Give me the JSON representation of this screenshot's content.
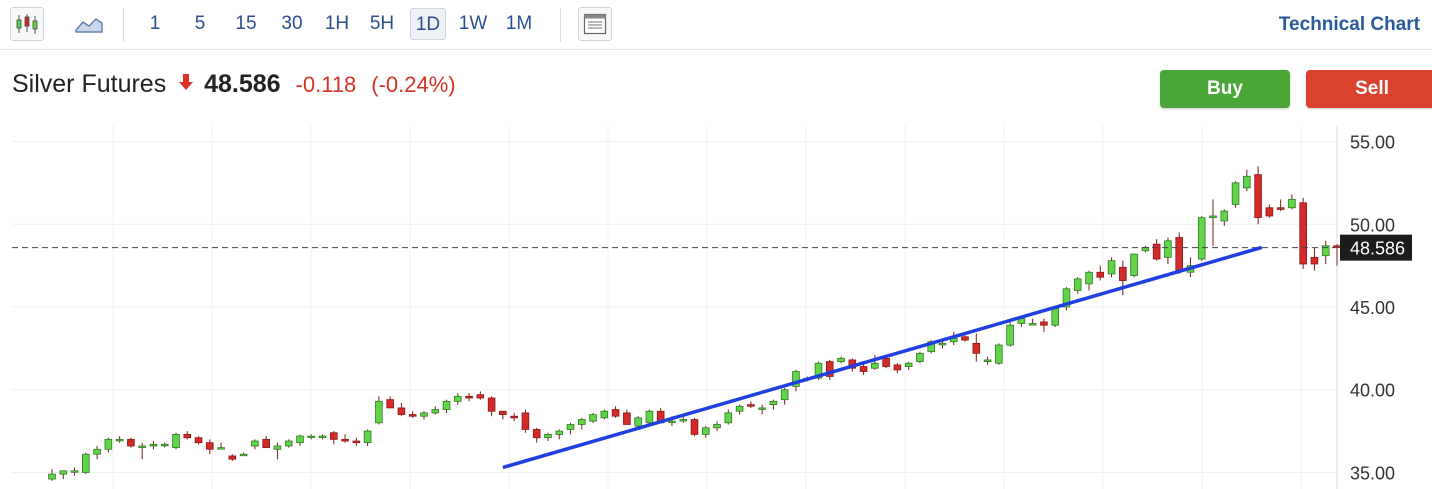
{
  "toolbar": {
    "chart_type_icons": [
      "candlestick-icon",
      "area-chart-icon"
    ],
    "intervals": [
      "1",
      "5",
      "15",
      "30",
      "1H",
      "5H",
      "1D",
      "1W",
      "1M"
    ],
    "active_interval": "1D",
    "layout_icon": "panel-layout-icon",
    "technical_link": "Technical Chart"
  },
  "instrument": {
    "name": "Silver Futures",
    "direction_icon": "arrow-down-icon",
    "price": "48.586",
    "change": "-0.118",
    "change_pct": "(-0.24%)"
  },
  "actions": {
    "buy_label": "Buy",
    "sell_label": "Sell"
  },
  "colors": {
    "up": "#62d44a",
    "down": "#d32a2a",
    "trendline": "#1f3fe0",
    "price_tag": "#1c1c1c",
    "negative_text": "#d7322a"
  },
  "chart_data": {
    "type": "candlestick",
    "ylim": [
      34,
      56
    ],
    "y_ticks": [
      "55.00",
      "50.00",
      "45.00",
      "40.00",
      "35.00"
    ],
    "y_tick_values": [
      55,
      50,
      45,
      40,
      35
    ],
    "last_price": 48.586,
    "last_price_label": "48.586",
    "grid": true,
    "candles": [
      [
        34.6,
        35.2,
        34.5,
        34.9
      ],
      [
        34.9,
        35.1,
        34.6,
        35.1
      ],
      [
        35.1,
        35.3,
        34.8,
        35.1
      ],
      [
        35.0,
        36.2,
        34.9,
        36.1
      ],
      [
        36.1,
        36.6,
        35.8,
        36.4
      ],
      [
        36.4,
        37.1,
        36.2,
        37.0
      ],
      [
        37.0,
        37.2,
        36.8,
        37.0
      ],
      [
        37.0,
        37.1,
        36.5,
        36.6
      ],
      [
        36.6,
        36.8,
        35.8,
        36.6
      ],
      [
        36.6,
        36.9,
        36.4,
        36.7
      ],
      [
        36.7,
        36.8,
        36.5,
        36.7
      ],
      [
        36.5,
        37.4,
        36.4,
        37.3
      ],
      [
        37.3,
        37.5,
        37.0,
        37.1
      ],
      [
        37.1,
        37.2,
        36.7,
        36.8
      ],
      [
        36.8,
        37.0,
        36.1,
        36.4
      ],
      [
        36.5,
        36.8,
        36.5,
        36.5
      ],
      [
        36.0,
        36.1,
        35.7,
        35.8
      ],
      [
        36.1,
        36.2,
        36.0,
        36.1
      ],
      [
        36.6,
        37.0,
        36.4,
        36.9
      ],
      [
        37.0,
        37.2,
        36.5,
        36.5
      ],
      [
        36.4,
        36.8,
        35.8,
        36.6
      ],
      [
        36.6,
        37.0,
        36.5,
        36.9
      ],
      [
        36.8,
        37.3,
        36.6,
        37.2
      ],
      [
        37.2,
        37.3,
        37.0,
        37.2
      ],
      [
        37.2,
        37.3,
        37.0,
        37.2
      ],
      [
        37.4,
        37.5,
        36.7,
        37.0
      ],
      [
        37.0,
        37.3,
        36.8,
        36.9
      ],
      [
        36.9,
        37.1,
        36.6,
        36.8
      ],
      [
        36.8,
        37.6,
        36.6,
        37.5
      ],
      [
        38.0,
        39.6,
        37.9,
        39.3
      ],
      [
        39.4,
        39.6,
        38.9,
        38.9
      ],
      [
        38.9,
        39.2,
        38.4,
        38.5
      ],
      [
        38.5,
        38.7,
        38.3,
        38.4
      ],
      [
        38.4,
        38.7,
        38.2,
        38.6
      ],
      [
        38.6,
        39.0,
        38.5,
        38.8
      ],
      [
        38.8,
        39.4,
        38.6,
        39.3
      ],
      [
        39.3,
        39.8,
        39.1,
        39.6
      ],
      [
        39.6,
        39.8,
        39.3,
        39.5
      ],
      [
        39.7,
        39.9,
        39.4,
        39.5
      ],
      [
        39.5,
        39.6,
        38.4,
        38.7
      ],
      [
        38.7,
        38.7,
        38.2,
        38.5
      ],
      [
        38.4,
        38.6,
        38.1,
        38.3
      ],
      [
        38.6,
        38.8,
        37.4,
        37.6
      ],
      [
        37.6,
        37.7,
        36.8,
        37.1
      ],
      [
        37.1,
        37.4,
        36.9,
        37.3
      ],
      [
        37.3,
        37.6,
        37.0,
        37.5
      ],
      [
        37.6,
        38.0,
        37.3,
        37.9
      ],
      [
        37.9,
        38.3,
        37.6,
        38.2
      ],
      [
        38.1,
        38.6,
        38.0,
        38.5
      ],
      [
        38.3,
        38.8,
        38.2,
        38.7
      ],
      [
        38.8,
        39.0,
        38.3,
        38.4
      ],
      [
        38.6,
        38.8,
        37.9,
        37.9
      ],
      [
        37.8,
        38.4,
        37.6,
        38.3
      ],
      [
        38.0,
        38.8,
        37.8,
        38.7
      ],
      [
        38.7,
        38.9,
        38.0,
        38.0
      ],
      [
        38.1,
        38.4,
        37.8,
        38.1
      ],
      [
        38.2,
        38.4,
        38.0,
        38.2
      ],
      [
        38.2,
        38.3,
        37.2,
        37.3
      ],
      [
        37.3,
        37.8,
        37.1,
        37.7
      ],
      [
        37.7,
        38.1,
        37.5,
        37.9
      ],
      [
        38.0,
        38.8,
        37.9,
        38.6
      ],
      [
        38.7,
        39.1,
        38.5,
        39.0
      ],
      [
        39.1,
        39.3,
        38.9,
        39.0
      ],
      [
        38.9,
        39.1,
        38.5,
        38.9
      ],
      [
        39.1,
        39.4,
        38.8,
        39.3
      ],
      [
        39.4,
        40.1,
        39.1,
        40.0
      ],
      [
        40.2,
        41.2,
        39.9,
        41.1
      ],
      [
        40.7,
        40.8,
        40.5,
        40.7
      ],
      [
        40.7,
        41.7,
        40.6,
        41.6
      ],
      [
        41.7,
        41.8,
        40.6,
        40.8
      ],
      [
        41.7,
        42.0,
        41.6,
        41.9
      ],
      [
        41.8,
        41.9,
        41.1,
        41.3
      ],
      [
        41.4,
        41.6,
        40.9,
        41.1
      ],
      [
        41.3,
        42.1,
        41.2,
        41.6
      ],
      [
        41.9,
        42.1,
        41.3,
        41.4
      ],
      [
        41.5,
        41.6,
        41.0,
        41.2
      ],
      [
        41.4,
        41.7,
        41.2,
        41.6
      ],
      [
        41.7,
        42.3,
        41.6,
        42.2
      ],
      [
        42.3,
        43.0,
        42.2,
        42.9
      ],
      [
        42.8,
        43.1,
        42.5,
        42.8
      ],
      [
        42.9,
        43.5,
        42.7,
        43.1
      ],
      [
        43.2,
        43.4,
        42.9,
        43.0
      ],
      [
        42.8,
        43.4,
        41.7,
        42.2
      ],
      [
        41.7,
        42.0,
        41.5,
        41.8
      ],
      [
        41.6,
        42.8,
        41.5,
        42.7
      ],
      [
        42.7,
        44.1,
        42.6,
        43.9
      ],
      [
        44.0,
        44.4,
        43.8,
        44.3
      ],
      [
        44.0,
        44.3,
        43.9,
        44.0
      ],
      [
        44.1,
        44.3,
        43.5,
        43.9
      ],
      [
        43.9,
        45.0,
        43.8,
        44.9
      ],
      [
        45.0,
        46.2,
        44.8,
        46.1
      ],
      [
        46.0,
        46.8,
        45.8,
        46.7
      ],
      [
        46.4,
        47.2,
        46.0,
        47.1
      ],
      [
        47.1,
        47.5,
        46.6,
        46.8
      ],
      [
        47.0,
        48.0,
        46.8,
        47.8
      ],
      [
        47.4,
        47.8,
        45.7,
        46.6
      ],
      [
        46.9,
        48.2,
        46.8,
        48.2
      ],
      [
        48.4,
        48.7,
        48.3,
        48.6
      ],
      [
        48.8,
        49.1,
        47.8,
        47.9
      ],
      [
        48.0,
        49.2,
        47.6,
        49.0
      ],
      [
        49.2,
        49.5,
        47.0,
        47.2
      ],
      [
        47.1,
        48.0,
        46.8,
        47.5
      ],
      [
        47.9,
        50.5,
        47.8,
        50.4
      ],
      [
        50.4,
        51.5,
        48.7,
        50.5
      ],
      [
        50.2,
        50.9,
        49.9,
        50.8
      ],
      [
        51.2,
        52.6,
        51.0,
        52.5
      ],
      [
        52.2,
        53.3,
        52.0,
        52.9
      ],
      [
        53.0,
        53.5,
        50.0,
        50.4
      ],
      [
        51.0,
        51.2,
        50.4,
        50.5
      ],
      [
        51.0,
        51.5,
        50.8,
        50.9
      ],
      [
        51.0,
        51.8,
        50.9,
        51.5
      ],
      [
        51.3,
        51.6,
        47.3,
        47.6
      ],
      [
        48.0,
        48.6,
        47.2,
        47.6
      ],
      [
        48.1,
        49.0,
        47.6,
        48.7
      ],
      [
        48.7,
        48.8,
        47.5,
        48.6
      ]
    ],
    "trendline": {
      "from": [
        40,
        35.3
      ],
      "to": [
        102,
        48.1
      ]
    }
  }
}
